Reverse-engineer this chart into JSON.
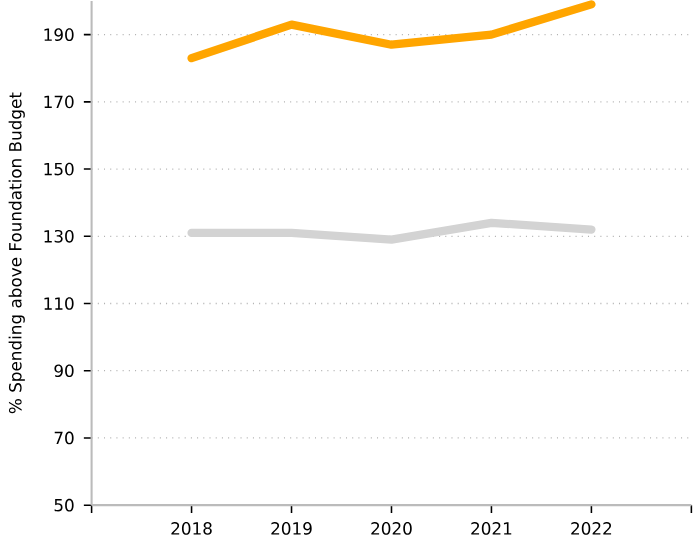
{
  "chart_data": {
    "type": "line",
    "ylabel": "% Spending above Foundation Budget",
    "x": [
      2018,
      2019,
      2020,
      2021,
      2022
    ],
    "series": [
      {
        "color": "#ffa500",
        "values": [
          183,
          193,
          187,
          190,
          199
        ]
      },
      {
        "color": "#d3d3d3",
        "values": [
          131,
          131,
          129,
          134,
          132
        ]
      }
    ],
    "xlim": [
      2017,
      2023
    ],
    "xticks": [
      {
        "value": 2017,
        "label": null
      },
      2018,
      2019,
      2020,
      2021,
      2022,
      {
        "value": 2023,
        "label": null
      }
    ],
    "ylim": [
      50,
      200
    ],
    "yticks": [
      50,
      70,
      90,
      110,
      130,
      150,
      170,
      190
    ],
    "grid": "y",
    "marker": "none",
    "line_style": "solid"
  }
}
